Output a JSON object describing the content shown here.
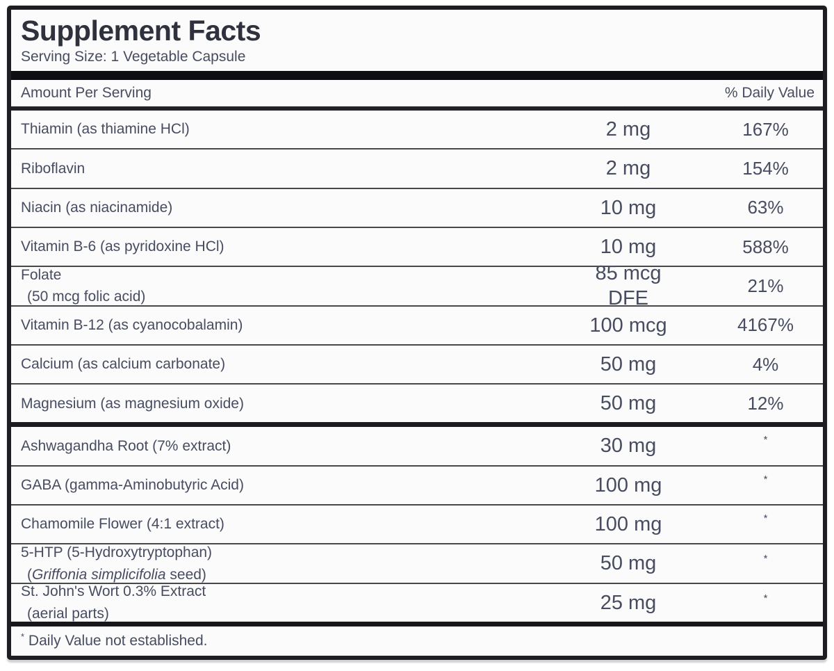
{
  "label": {
    "title": "Supplement Facts",
    "serving_size": "Serving Size: 1 Vegetable Capsule",
    "columns": {
      "left": "Amount Per Serving",
      "right": "% Daily Value"
    },
    "footnote_symbol": "*",
    "footnote": "Daily Value not established.",
    "colors": {
      "text": "#474c60",
      "title": "#2f323c",
      "border": "#1e1e22",
      "background": "#fbfbfc"
    }
  },
  "rows": [
    {
      "name": "Thiamin (as thiamine HCl)",
      "amount": "2 mg",
      "percent": "167%"
    },
    {
      "name": "Riboflavin",
      "amount": "2 mg",
      "percent": "154%"
    },
    {
      "name": "Niacin (as niacinamide)",
      "amount": "10 mg",
      "percent": "63%"
    },
    {
      "name": "Vitamin B-6 (as pyridoxine HCl)",
      "amount": "10 mg",
      "percent": "588%"
    },
    {
      "name": "Folate",
      "sub_prefix": "(50 mcg folic acid)",
      "sub_italic": "",
      "sub_suffix": "",
      "amount": "85 mcg",
      "amount2": "DFE",
      "percent": "21%"
    },
    {
      "name": "Vitamin B-12 (as cyanocobalamin)",
      "amount": "100 mcg",
      "percent": "4167%"
    },
    {
      "name": "Calcium (as calcium carbonate)",
      "amount": "50 mg",
      "percent": "4%"
    },
    {
      "name": "Magnesium (as magnesium oxide)",
      "amount": "50 mg",
      "percent": "12%"
    },
    {
      "name": "Ashwagandha Root (7% extract)",
      "amount": "30 mg",
      "percent": "*",
      "section_break": true
    },
    {
      "name": "GABA (gamma-Aminobutyric Acid)",
      "amount": "100 mg",
      "percent": "*"
    },
    {
      "name": "Chamomile Flower (4:1 extract)",
      "amount": "100 mg",
      "percent": "*"
    },
    {
      "name": "5-HTP (5-Hydroxytryptophan)",
      "sub_prefix": "(",
      "sub_italic": "Griffonia simplicifolia",
      "sub_suffix": " seed)",
      "amount": "50 mg",
      "percent": "*"
    },
    {
      "name": "St. John's Wort 0.3% Extract",
      "sub_prefix": "(aerial parts)",
      "sub_italic": "",
      "sub_suffix": "",
      "amount": "25 mg",
      "percent": "*"
    }
  ]
}
